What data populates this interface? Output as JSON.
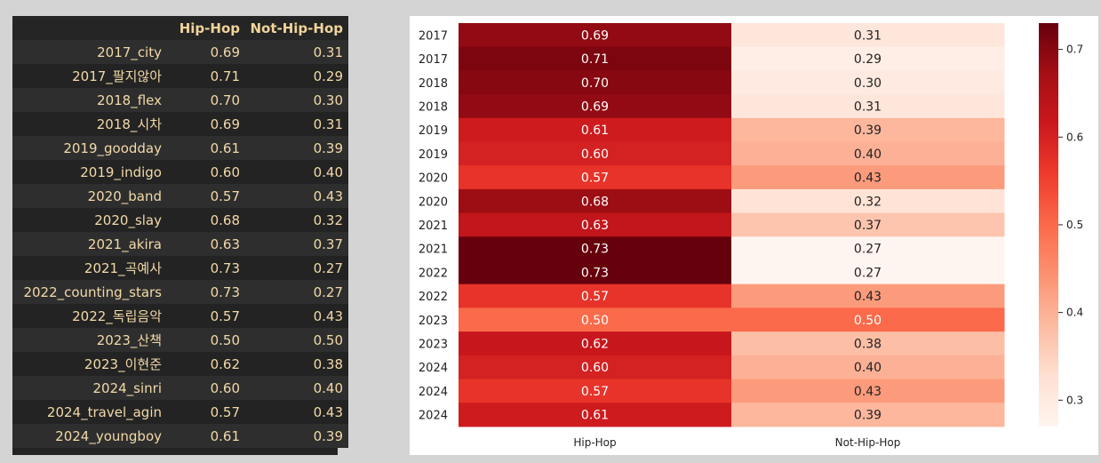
{
  "dataframe": {
    "columns": [
      "",
      "Hip-Hop",
      "Not-Hip-Hop"
    ],
    "rows": [
      {
        "index": "2017_city",
        "hiphop": "0.69",
        "not_hiphop": "0.31"
      },
      {
        "index": "2017_팔지않아",
        "hiphop": "0.71",
        "not_hiphop": "0.29"
      },
      {
        "index": "2018_flex",
        "hiphop": "0.70",
        "not_hiphop": "0.30"
      },
      {
        "index": "2018_시차",
        "hiphop": "0.69",
        "not_hiphop": "0.31"
      },
      {
        "index": "2019_goodday",
        "hiphop": "0.61",
        "not_hiphop": "0.39"
      },
      {
        "index": "2019_indigo",
        "hiphop": "0.60",
        "not_hiphop": "0.40"
      },
      {
        "index": "2020_band",
        "hiphop": "0.57",
        "not_hiphop": "0.43"
      },
      {
        "index": "2020_slay",
        "hiphop": "0.68",
        "not_hiphop": "0.32"
      },
      {
        "index": "2021_akira",
        "hiphop": "0.63",
        "not_hiphop": "0.37"
      },
      {
        "index": "2021_곡예사",
        "hiphop": "0.73",
        "not_hiphop": "0.27"
      },
      {
        "index": "2022_counting_stars",
        "hiphop": "0.73",
        "not_hiphop": "0.27"
      },
      {
        "index": "2022_독립음악",
        "hiphop": "0.57",
        "not_hiphop": "0.43"
      },
      {
        "index": "2023_산책",
        "hiphop": "0.50",
        "not_hiphop": "0.50"
      },
      {
        "index": "2023_이현준",
        "hiphop": "0.62",
        "not_hiphop": "0.38"
      },
      {
        "index": "2024_sinri",
        "hiphop": "0.60",
        "not_hiphop": "0.40"
      },
      {
        "index": "2024_travel_agin",
        "hiphop": "0.57",
        "not_hiphop": "0.43"
      },
      {
        "index": "2024_youngboy",
        "hiphop": "0.61",
        "not_hiphop": "0.39"
      }
    ]
  },
  "chart_data": {
    "type": "heatmap",
    "title": "",
    "colormap": "Reds",
    "x_categories": [
      "Hip-Hop",
      "Not-Hip-Hop"
    ],
    "y_categories": [
      "2017",
      "2017",
      "2018",
      "2018",
      "2019",
      "2019",
      "2020",
      "2020",
      "2021",
      "2021",
      "2022",
      "2022",
      "2023",
      "2023",
      "2024",
      "2024",
      "2024"
    ],
    "values": [
      [
        0.69,
        0.31
      ],
      [
        0.71,
        0.29
      ],
      [
        0.7,
        0.3
      ],
      [
        0.69,
        0.31
      ],
      [
        0.61,
        0.39
      ],
      [
        0.6,
        0.4
      ],
      [
        0.57,
        0.43
      ],
      [
        0.68,
        0.32
      ],
      [
        0.63,
        0.37
      ],
      [
        0.73,
        0.27
      ],
      [
        0.73,
        0.27
      ],
      [
        0.57,
        0.43
      ],
      [
        0.5,
        0.5
      ],
      [
        0.62,
        0.38
      ],
      [
        0.6,
        0.4
      ],
      [
        0.57,
        0.43
      ],
      [
        0.61,
        0.39
      ]
    ],
    "value_labels": [
      [
        "0.69",
        "0.31"
      ],
      [
        "0.71",
        "0.29"
      ],
      [
        "0.70",
        "0.30"
      ],
      [
        "0.69",
        "0.31"
      ],
      [
        "0.61",
        "0.39"
      ],
      [
        "0.60",
        "0.40"
      ],
      [
        "0.57",
        "0.43"
      ],
      [
        "0.68",
        "0.32"
      ],
      [
        "0.63",
        "0.37"
      ],
      [
        "0.73",
        "0.27"
      ],
      [
        "0.73",
        "0.27"
      ],
      [
        "0.57",
        "0.43"
      ],
      [
        "0.50",
        "0.50"
      ],
      [
        "0.62",
        "0.38"
      ],
      [
        "0.60",
        "0.40"
      ],
      [
        "0.57",
        "0.43"
      ],
      [
        "0.61",
        "0.39"
      ]
    ],
    "colorbar": {
      "vmin": 0.27,
      "vmax": 0.73,
      "ticks": [
        0.3,
        0.4,
        0.5,
        0.6,
        0.7
      ],
      "tick_labels": [
        "0.3",
        "0.4",
        "0.5",
        "0.6",
        "0.7"
      ]
    }
  }
}
